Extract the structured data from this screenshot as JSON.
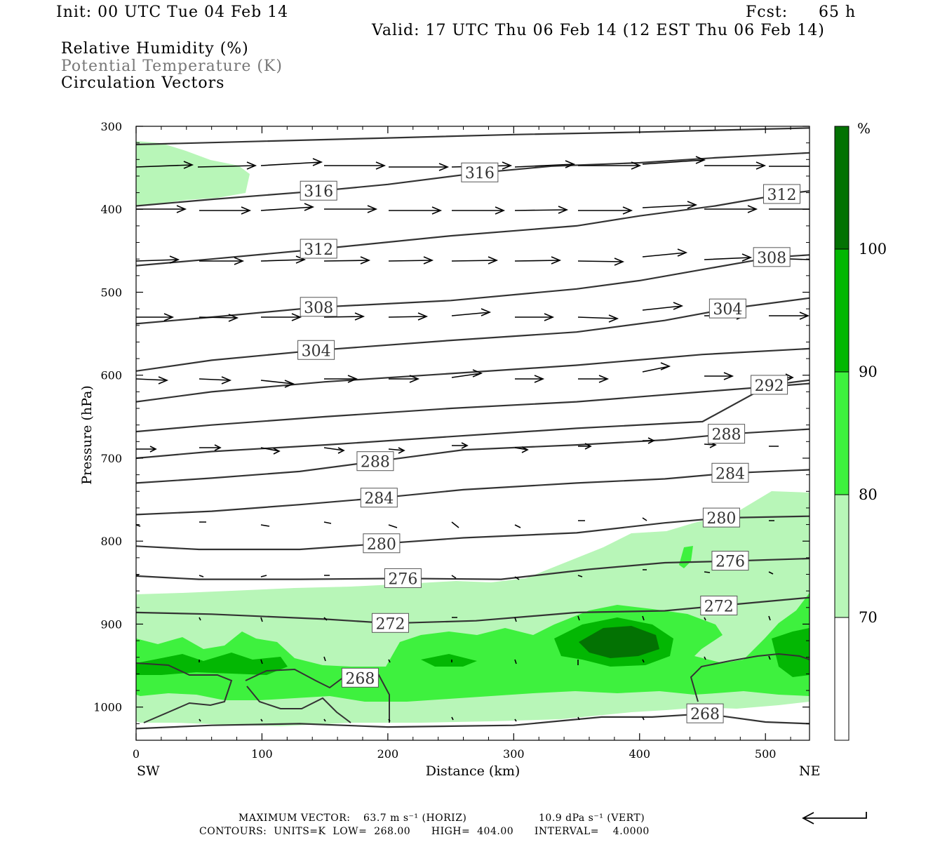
{
  "header": {
    "init": "Init: 00 UTC Tue 04 Feb 14",
    "fcst_label": "Fcst:",
    "fcst_value": "65 h",
    "valid": "Valid: 17 UTC Thu 06 Feb 14 (12 EST Thu 06 Feb 14)",
    "field1": "Relative Humidity (%)",
    "field2": "Potential Temperature (K)",
    "field3": "Circulation Vectors"
  },
  "footer": {
    "max_vector_label": "MAXIMUM VECTOR:",
    "max_vector_horiz": "63.7 m s⁻¹ (HORIZ)",
    "max_vector_vert": "10.9 dPa s⁻¹ (VERT)",
    "contours": "CONTOURS:  UNITS=K  LOW=  268.00      HIGH=  404.00      INTERVAL=    4.0000"
  },
  "colors": {
    "rh_70": "#b8f6b8",
    "rh_80": "#3ef13e",
    "rh_90": "#03b703",
    "rh_100": "#037203",
    "contour": "#333333"
  },
  "chart_data": {
    "type": "cross-section",
    "xlabel": "Distance (km)",
    "ylabel": "Pressure (hPa)",
    "x_ticks": [
      0,
      100,
      200,
      300,
      400,
      500
    ],
    "y_ticks": [
      300,
      400,
      500,
      600,
      700,
      800,
      900,
      1000
    ],
    "xlim": [
      0,
      535
    ],
    "ylim": [
      300,
      1040
    ],
    "y_scale": "linear-inverted",
    "left_label": "SW",
    "right_label": "NE",
    "colorbar": {
      "unit": "%",
      "levels": [
        70,
        80,
        90,
        100
      ],
      "labels": [
        "70",
        "80",
        "90",
        "100"
      ]
    },
    "theta_contours": [
      {
        "value": "320",
        "labels": [],
        "points": [
          [
            0,
            322
          ],
          [
            100,
            318
          ],
          [
            200,
            314
          ],
          [
            300,
            310
          ],
          [
            400,
            307
          ],
          [
            535,
            302
          ]
        ]
      },
      {
        "value": "316",
        "labels": [
          [
            145,
            378
          ],
          [
            273,
            356
          ]
        ],
        "points": [
          [
            0,
            396
          ],
          [
            60,
            388
          ],
          [
            145,
            378
          ],
          [
            200,
            370
          ],
          [
            273,
            356
          ],
          [
            330,
            348
          ],
          [
            400,
            344
          ],
          [
            460,
            338
          ],
          [
            535,
            332
          ]
        ]
      },
      {
        "value": "312",
        "labels": [
          [
            145,
            448
          ],
          [
            513,
            382
          ]
        ],
        "points": [
          [
            0,
            468
          ],
          [
            60,
            460
          ],
          [
            145,
            448
          ],
          [
            250,
            432
          ],
          [
            350,
            420
          ],
          [
            400,
            408
          ],
          [
            460,
            396
          ],
          [
            513,
            382
          ],
          [
            535,
            378
          ]
        ]
      },
      {
        "value": "308",
        "labels": [
          [
            145,
            518
          ],
          [
            505,
            458
          ]
        ],
        "points": [
          [
            0,
            538
          ],
          [
            60,
            530
          ],
          [
            145,
            518
          ],
          [
            250,
            510
          ],
          [
            350,
            496
          ],
          [
            400,
            486
          ],
          [
            460,
            470
          ],
          [
            505,
            458
          ],
          [
            535,
            455
          ]
        ]
      },
      {
        "value": "304",
        "labels": [
          [
            143,
            570
          ],
          [
            470,
            520
          ]
        ],
        "points": [
          [
            0,
            595
          ],
          [
            60,
            582
          ],
          [
            143,
            570
          ],
          [
            250,
            558
          ],
          [
            350,
            548
          ],
          [
            420,
            534
          ],
          [
            470,
            520
          ],
          [
            535,
            507
          ]
        ]
      },
      {
        "value": "300",
        "labels": [],
        "points": [
          [
            0,
            632
          ],
          [
            60,
            620
          ],
          [
            150,
            608
          ],
          [
            250,
            598
          ],
          [
            350,
            588
          ],
          [
            450,
            575
          ],
          [
            535,
            568
          ]
        ]
      },
      {
        "value": "296",
        "labels": [],
        "points": [
          [
            0,
            668
          ],
          [
            60,
            660
          ],
          [
            150,
            650
          ],
          [
            250,
            640
          ],
          [
            350,
            632
          ],
          [
            450,
            620
          ],
          [
            535,
            610
          ]
        ]
      },
      {
        "value": "292",
        "labels": [
          [
            503,
            612
          ]
        ],
        "points": [
          [
            0,
            700
          ],
          [
            60,
            692
          ],
          [
            150,
            684
          ],
          [
            250,
            674
          ],
          [
            350,
            664
          ],
          [
            450,
            656
          ],
          [
            503,
            612
          ],
          [
            535,
            606
          ]
        ]
      },
      {
        "value": "288",
        "labels": [
          [
            190,
            704
          ],
          [
            469,
            671
          ]
        ],
        "points": [
          [
            0,
            730
          ],
          [
            60,
            724
          ],
          [
            130,
            716
          ],
          [
            190,
            704
          ],
          [
            260,
            690
          ],
          [
            350,
            684
          ],
          [
            420,
            678
          ],
          [
            469,
            671
          ],
          [
            535,
            665
          ]
        ]
      },
      {
        "value": "284",
        "labels": [
          [
            193,
            748
          ],
          [
            472,
            718
          ]
        ],
        "points": [
          [
            0,
            768
          ],
          [
            60,
            764
          ],
          [
            130,
            756
          ],
          [
            193,
            748
          ],
          [
            260,
            738
          ],
          [
            350,
            730
          ],
          [
            420,
            725
          ],
          [
            472,
            718
          ],
          [
            535,
            714
          ]
        ]
      },
      {
        "value": "280",
        "labels": [
          [
            195,
            803
          ],
          [
            465,
            772
          ]
        ],
        "points": [
          [
            0,
            806
          ],
          [
            50,
            810
          ],
          [
            130,
            810
          ],
          [
            195,
            803
          ],
          [
            260,
            796
          ],
          [
            350,
            790
          ],
          [
            420,
            778
          ],
          [
            465,
            772
          ],
          [
            535,
            770
          ]
        ]
      },
      {
        "value": "276",
        "labels": [
          [
            212,
            845
          ],
          [
            472,
            824
          ]
        ],
        "points": [
          [
            0,
            842
          ],
          [
            50,
            846
          ],
          [
            130,
            846
          ],
          [
            212,
            845
          ],
          [
            290,
            846
          ],
          [
            360,
            834
          ],
          [
            420,
            826
          ],
          [
            472,
            824
          ],
          [
            535,
            821
          ]
        ]
      },
      {
        "value": "272",
        "labels": [
          [
            202,
            899
          ],
          [
            463,
            878
          ]
        ],
        "points": [
          [
            0,
            886
          ],
          [
            60,
            888
          ],
          [
            150,
            894
          ],
          [
            202,
            899
          ],
          [
            270,
            896
          ],
          [
            350,
            886
          ],
          [
            420,
            884
          ],
          [
            463,
            878
          ],
          [
            535,
            868
          ]
        ]
      },
      {
        "value": "268",
        "labels": [
          [
            178,
            965
          ],
          [
            452,
            1008
          ]
        ],
        "points": [
          [
            0,
            1026
          ],
          [
            60,
            1022
          ],
          [
            130,
            1020
          ],
          [
            200,
            1024
          ],
          [
            300,
            1022
          ],
          [
            370,
            1012
          ],
          [
            410,
            1012
          ],
          [
            452,
            1008
          ],
          [
            500,
            1018
          ],
          [
            535,
            1020
          ]
        ]
      }
    ]
  }
}
